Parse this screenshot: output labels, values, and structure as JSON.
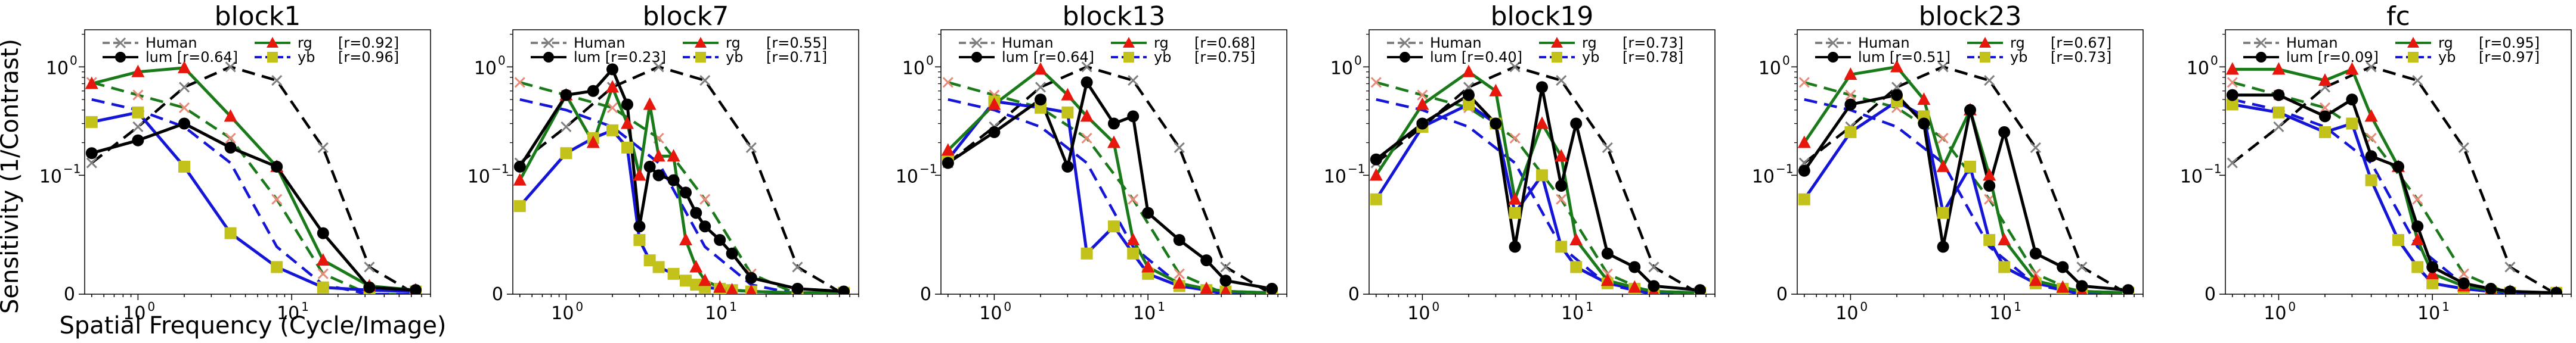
{
  "chart_data": {
    "type": "line",
    "xscale": "log",
    "yscale": "symlog",
    "xlabel": "Spatial Frequency (Cycle/Image)",
    "ylabel": "Sensitivity (1/Contrast)",
    "xlim": [
      0.45,
      80
    ],
    "ylim": [
      0,
      2.2
    ],
    "x_ticks": [
      {
        "value": 1,
        "label": "10",
        "exp": "0"
      },
      {
        "value": 10,
        "label": "10",
        "exp": "1"
      }
    ],
    "y_ticks": [
      {
        "value": 0,
        "label": "0",
        "exp": ""
      },
      {
        "value": 0.1,
        "label": "10",
        "exp": "−1"
      },
      {
        "value": 1,
        "label": "10",
        "exp": "0"
      }
    ],
    "legend_location": "top",
    "series_styles": [
      {
        "key": "Human",
        "color": "#7f7f7f",
        "dash": "dashed",
        "marker": "x"
      },
      {
        "key": "lum",
        "color": "#000000",
        "dash": "solid",
        "marker": "circle"
      },
      {
        "key": "rg",
        "color": "#1a7a1a",
        "dash": "solid",
        "marker": "triangle"
      },
      {
        "key": "yb",
        "color": "#1515d8",
        "dash": "solid",
        "marker": "square"
      }
    ],
    "reference_curves": {
      "x": [
        0.5,
        1,
        2,
        4,
        8,
        16,
        32,
        64
      ],
      "lum_human": [
        0.13,
        0.28,
        0.65,
        1.0,
        0.75,
        0.18,
        0.02,
        0.0
      ],
      "rg_human": [
        0.72,
        0.55,
        0.42,
        0.22,
        0.07,
        0.015,
        0.0,
        0.0
      ],
      "yb_human": [
        0.5,
        0.4,
        0.28,
        0.13,
        0.035,
        0.007,
        0.0,
        0.0
      ]
    },
    "panels": [
      {
        "title": "block1",
        "legend": {
          "human": "Human",
          "lum": "lum [r=0.64]",
          "rg": "rg",
          "rg_r": "[r=0.92]",
          "yb": "yb",
          "yb_r": "[r=0.96]"
        },
        "x": [
          0.5,
          1,
          2,
          4,
          8,
          16,
          32,
          64
        ],
        "lum": [
          0.16,
          0.21,
          0.3,
          0.18,
          0.12,
          0.045,
          0.005,
          0.003
        ],
        "rg": [
          0.7,
          0.9,
          0.98,
          0.35,
          0.12,
          0.025,
          0.006,
          0.003
        ],
        "yb": [
          0.31,
          0.38,
          0.12,
          0.045,
          0.02,
          0.005,
          0.003,
          0.002
        ]
      },
      {
        "title": "block7",
        "legend": {
          "human": "Human",
          "lum": "lum [r=0.23]",
          "rg": "rg",
          "rg_r": "[r=0.55]",
          "yb": "yb",
          "yb_r": "[r=0.71]"
        },
        "x": [
          0.5,
          1,
          1.5,
          2,
          2.5,
          3,
          3.5,
          4,
          5,
          6,
          7,
          8,
          10,
          12,
          16,
          32,
          64
        ],
        "lum": [
          0.12,
          0.55,
          0.6,
          0.95,
          0.45,
          0.05,
          0.12,
          0.1,
          0.09,
          0.075,
          0.06,
          0.05,
          0.04,
          0.03,
          0.012,
          0.004,
          0.002
        ],
        "rg": [
          0.09,
          0.55,
          0.2,
          0.65,
          0.3,
          0.1,
          0.45,
          0.15,
          0.15,
          0.04,
          0.02,
          0.01,
          0.005,
          0.003,
          0.002,
          0.001,
          0.001
        ],
        "yb": [
          0.065,
          0.16,
          0.22,
          0.26,
          0.18,
          0.04,
          0.025,
          0.02,
          0.015,
          0.01,
          0.007,
          0.005,
          0.004,
          0.003,
          0.002,
          0.001,
          0.001
        ]
      },
      {
        "title": "block13",
        "legend": {
          "human": "Human",
          "lum": "lum [r=0.64]",
          "rg": "rg",
          "rg_r": "[r=0.68]",
          "yb": "yb",
          "yb_r": "[r=0.75]"
        },
        "x": [
          0.5,
          1,
          2,
          3,
          4,
          6,
          8,
          10,
          16,
          24,
          32,
          64
        ],
        "lum": [
          0.13,
          0.25,
          0.5,
          0.12,
          0.72,
          0.3,
          0.35,
          0.06,
          0.04,
          0.025,
          0.01,
          0.004
        ],
        "rg": [
          0.17,
          0.45,
          0.95,
          0.55,
          0.35,
          0.2,
          0.04,
          0.02,
          0.008,
          0.004,
          0.002,
          0.001
        ],
        "yb": [
          0.14,
          0.48,
          0.42,
          0.38,
          0.03,
          0.05,
          0.03,
          0.015,
          0.006,
          0.003,
          0.002,
          0.001
        ]
      },
      {
        "title": "block19",
        "legend": {
          "human": "Human",
          "lum": "lum [r=0.40]",
          "rg": "rg",
          "rg_r": "[r=0.73]",
          "yb": "yb",
          "yb_r": "[r=0.78]"
        },
        "x": [
          0.5,
          1,
          2,
          3,
          4,
          6,
          8,
          10,
          16,
          24,
          32,
          64
        ],
        "lum": [
          0.14,
          0.3,
          0.55,
          0.3,
          0.035,
          0.65,
          0.08,
          0.3,
          0.03,
          0.02,
          0.006,
          0.003
        ],
        "rg": [
          0.1,
          0.45,
          0.9,
          0.6,
          0.07,
          0.3,
          0.15,
          0.04,
          0.01,
          0.005,
          0.002,
          0.001
        ],
        "yb": [
          0.07,
          0.28,
          0.45,
          0.3,
          0.06,
          0.1,
          0.035,
          0.02,
          0.008,
          0.004,
          0.002,
          0.001
        ]
      },
      {
        "title": "block23",
        "legend": {
          "human": "Human",
          "lum": "lum [r=0.51]",
          "rg": "rg",
          "rg_r": "[r=0.67]",
          "yb": "yb",
          "yb_r": "[r=0.73]"
        },
        "x": [
          0.5,
          1,
          2,
          3,
          4,
          6,
          8,
          10,
          16,
          24,
          32,
          64
        ],
        "lum": [
          0.11,
          0.45,
          0.55,
          0.3,
          0.035,
          0.4,
          0.08,
          0.25,
          0.03,
          0.02,
          0.006,
          0.003
        ],
        "rg": [
          0.2,
          0.85,
          1.0,
          0.5,
          0.12,
          0.4,
          0.1,
          0.04,
          0.01,
          0.005,
          0.002,
          0.001
        ],
        "yb": [
          0.07,
          0.25,
          0.48,
          0.35,
          0.06,
          0.12,
          0.04,
          0.02,
          0.008,
          0.004,
          0.002,
          0.001
        ]
      },
      {
        "title": "fc",
        "legend": {
          "human": "Human",
          "lum": "lum [r=0.09]",
          "rg": "rg",
          "rg_r": "[r=0.95]",
          "yb": "yb",
          "yb_r": "[r=0.97]"
        },
        "x": [
          0.5,
          1,
          2,
          3,
          4,
          6,
          8,
          10,
          16,
          24,
          32,
          64
        ],
        "lum": [
          0.55,
          0.55,
          0.35,
          0.5,
          0.15,
          0.12,
          0.05,
          0.02,
          0.008,
          0.004,
          0.002,
          0.001
        ],
        "rg": [
          0.95,
          0.95,
          0.75,
          0.95,
          0.35,
          0.12,
          0.04,
          0.015,
          0.006,
          0.003,
          0.002,
          0.001
        ],
        "yb": [
          0.45,
          0.38,
          0.25,
          0.3,
          0.09,
          0.04,
          0.02,
          0.008,
          0.004,
          0.002,
          0.001,
          0.001
        ]
      }
    ]
  }
}
